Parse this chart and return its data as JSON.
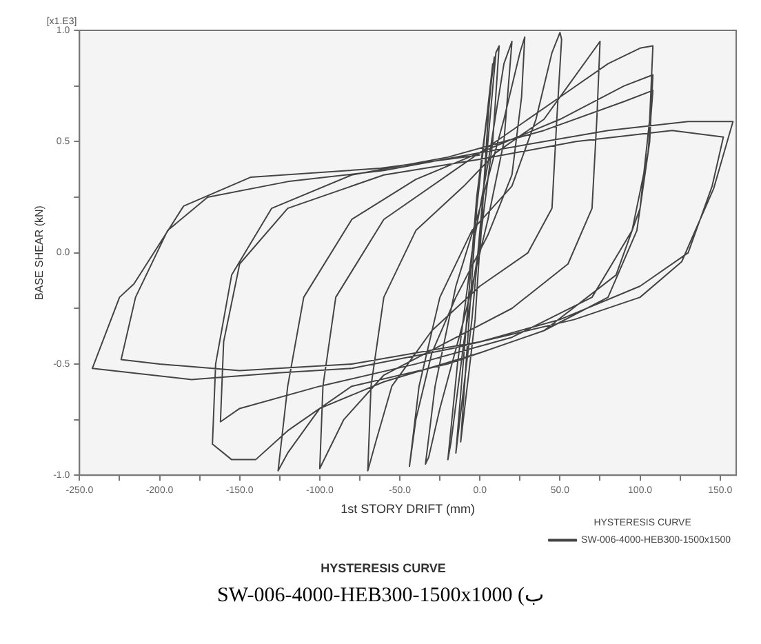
{
  "chart_data": {
    "type": "line",
    "title": "HYSTERESIS CURVE",
    "xlabel": "1st STORY DRIFT (mm)",
    "ylabel": "BASE SHEAR (kN)",
    "legend_title": "HYSTERESIS CURVE",
    "legend": "bottom right",
    "grid": false,
    "marker": "none",
    "line_style": "solid",
    "annotations": [
      "[x1.E3]",
      "ب) SW-006-4000-HEB300-1500x1000"
    ],
    "xlim": [
      -250,
      160
    ],
    "ylim": [
      -1,
      1
    ],
    "xticks": [
      {
        "value": -250,
        "label": "-250.0"
      },
      {
        "value": -225,
        "label": null
      },
      {
        "value": -200,
        "label": "-200.0"
      },
      {
        "value": -175,
        "label": null
      },
      {
        "value": -150,
        "label": "-150.0"
      },
      {
        "value": -125,
        "label": null
      },
      {
        "value": -100,
        "label": "-100.0"
      },
      {
        "value": -75,
        "label": null
      },
      {
        "value": -50,
        "label": "-50.0"
      },
      {
        "value": -25,
        "label": null
      },
      {
        "value": 0,
        "label": "0.0"
      },
      {
        "value": 25,
        "label": null
      },
      {
        "value": 50,
        "label": "50.0"
      },
      {
        "value": 75,
        "label": null
      },
      {
        "value": 100,
        "label": "100.0"
      },
      {
        "value": 125,
        "label": null
      },
      {
        "value": 150,
        "label": "150.0"
      }
    ],
    "yticks": [
      {
        "value": -1,
        "label": "-1.0"
      },
      {
        "value": -0.75,
        "label": null
      },
      {
        "value": -0.5,
        "label": "-0.5"
      },
      {
        "value": -0.25,
        "label": null
      },
      {
        "value": 0,
        "label": "0.0"
      },
      {
        "value": 0.25,
        "label": null
      },
      {
        "value": 0.5,
        "label": "0.5"
      },
      {
        "value": 0.75,
        "label": null
      },
      {
        "value": 1,
        "label": "1.0"
      }
    ],
    "series": [
      {
        "name": "SW-006-4000-HEB300-1500x1500",
        "color": "#444444",
        "x": [
          0,
          5,
          8,
          -2,
          -12,
          -3,
          6,
          9,
          -2,
          -15,
          -5,
          10,
          12,
          8,
          0,
          -10,
          -18,
          -20,
          -14,
          -5,
          5,
          15,
          20,
          15,
          5,
          -10,
          -25,
          -32,
          -34,
          -28,
          -15,
          0,
          15,
          25,
          28,
          26,
          20,
          5,
          -15,
          -30,
          -40,
          -44,
          -38,
          -25,
          -5,
          20,
          35,
          45,
          50,
          51,
          48,
          45,
          30,
          0,
          -30,
          -55,
          -65,
          -70,
          -68,
          -60,
          -40,
          -10,
          10,
          40,
          55,
          70,
          75,
          73,
          70,
          55,
          20,
          -20,
          -60,
          -85,
          -100,
          -98,
          -90,
          -60,
          -20,
          10,
          50,
          80,
          100,
          108,
          106,
          100,
          85,
          40,
          0,
          -60,
          -100,
          -120,
          -126,
          -120,
          -110,
          -80,
          -40,
          0,
          50,
          90,
          108,
          106,
          98,
          80,
          40,
          -20,
          -80,
          -120,
          -140,
          -155,
          -167,
          -165,
          -155,
          -130,
          -80,
          -20,
          40,
          90,
          108,
          105,
          95,
          70,
          20,
          -40,
          -100,
          -150,
          -162,
          -160,
          -150,
          -120,
          -60,
          0,
          60,
          120,
          152,
          145,
          130,
          100,
          50,
          0,
          -80,
          -150,
          -200,
          -224,
          -215,
          -195,
          -170,
          -120,
          -60,
          0,
          80,
          130,
          158,
          146,
          126,
          100,
          59,
          -17,
          -80,
          -126,
          -180,
          -242,
          -225,
          -216,
          -185,
          -143,
          -62,
          0
        ],
        "values": [
          0,
          0.6,
          0.85,
          0.2,
          -0.85,
          -0.3,
          0.7,
          0.88,
          0.25,
          -0.9,
          -0.3,
          0.9,
          0.93,
          0.5,
          0.05,
          -0.4,
          -0.85,
          -0.93,
          -0.5,
          0,
          0.4,
          0.85,
          0.95,
          0.5,
          0.15,
          -0.3,
          -0.7,
          -0.92,
          -0.95,
          -0.6,
          -0.15,
          0.2,
          0.6,
          0.9,
          0.97,
          0.7,
          0.35,
          0.08,
          -0.2,
          -0.45,
          -0.75,
          -0.96,
          -0.6,
          -0.2,
          0.1,
          0.3,
          0.6,
          0.9,
          0.99,
          0.96,
          0.6,
          0.2,
          0,
          -0.15,
          -0.35,
          -0.6,
          -0.85,
          -0.98,
          -0.6,
          -0.2,
          0.1,
          0.3,
          0.45,
          0.6,
          0.75,
          0.9,
          0.95,
          0.6,
          0.2,
          -0.05,
          -0.25,
          -0.4,
          -0.55,
          -0.75,
          -0.97,
          -0.6,
          -0.2,
          0.15,
          0.35,
          0.5,
          0.7,
          0.85,
          0.92,
          0.93,
          0.6,
          0.2,
          -0.1,
          -0.35,
          -0.45,
          -0.58,
          -0.7,
          -0.9,
          -0.98,
          -0.6,
          -0.2,
          0.15,
          0.33,
          0.45,
          0.6,
          0.75,
          0.8,
          0.5,
          0.1,
          -0.2,
          -0.35,
          -0.5,
          -0.6,
          -0.8,
          -0.93,
          -0.93,
          -0.86,
          -0.5,
          -0.1,
          0.2,
          0.35,
          0.43,
          0.55,
          0.68,
          0.73,
          0.45,
          0.1,
          -0.2,
          -0.38,
          -0.5,
          -0.6,
          -0.7,
          -0.76,
          -0.4,
          -0.05,
          0.2,
          0.35,
          0.42,
          0.5,
          0.55,
          0.52,
          0.3,
          0,
          -0.15,
          -0.3,
          -0.4,
          -0.5,
          -0.53,
          -0.5,
          -0.48,
          -0.2,
          0.1,
          0.25,
          0.32,
          0.37,
          0.45,
          0.55,
          0.59,
          0.59,
          0.29,
          -0.04,
          -0.2,
          -0.3,
          -0.43,
          -0.52,
          -0.54,
          -0.57,
          -0.52,
          -0.2,
          -0.14,
          0.21,
          0.34,
          0.38,
          0.44
        ]
      }
    ]
  }
}
